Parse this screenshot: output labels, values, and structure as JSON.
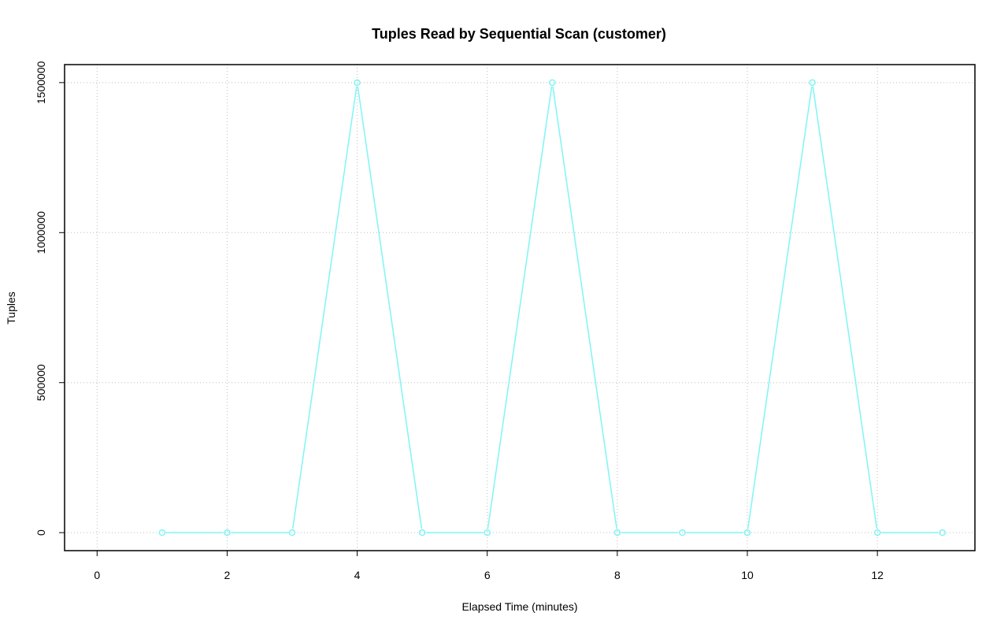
{
  "chart_data": {
    "type": "line",
    "title": "Tuples Read by Sequential Scan (customer)",
    "xlabel": "Elapsed Time (minutes)",
    "ylabel": "Tuples",
    "xlim": [
      -0.5,
      13.5
    ],
    "ylim": [
      -60000,
      1560000
    ],
    "x_ticks": [
      0,
      2,
      4,
      6,
      8,
      10,
      12
    ],
    "y_ticks": [
      0,
      500000,
      1000000,
      1500000
    ],
    "x_tick_labels": [
      "0",
      "2",
      "4",
      "6",
      "8",
      "10",
      "12"
    ],
    "y_tick_labels": [
      "0",
      "500000",
      "1000000",
      "1500000"
    ],
    "grid": true,
    "color": "#7ff5f5",
    "series": [
      {
        "x": [
          1,
          2,
          3,
          4,
          5,
          6,
          7,
          8,
          9,
          10,
          11,
          12,
          13
        ],
        "values": [
          0,
          0,
          0,
          1500000,
          0,
          0,
          1500000,
          0,
          0,
          0,
          1500000,
          0,
          0
        ]
      }
    ]
  }
}
